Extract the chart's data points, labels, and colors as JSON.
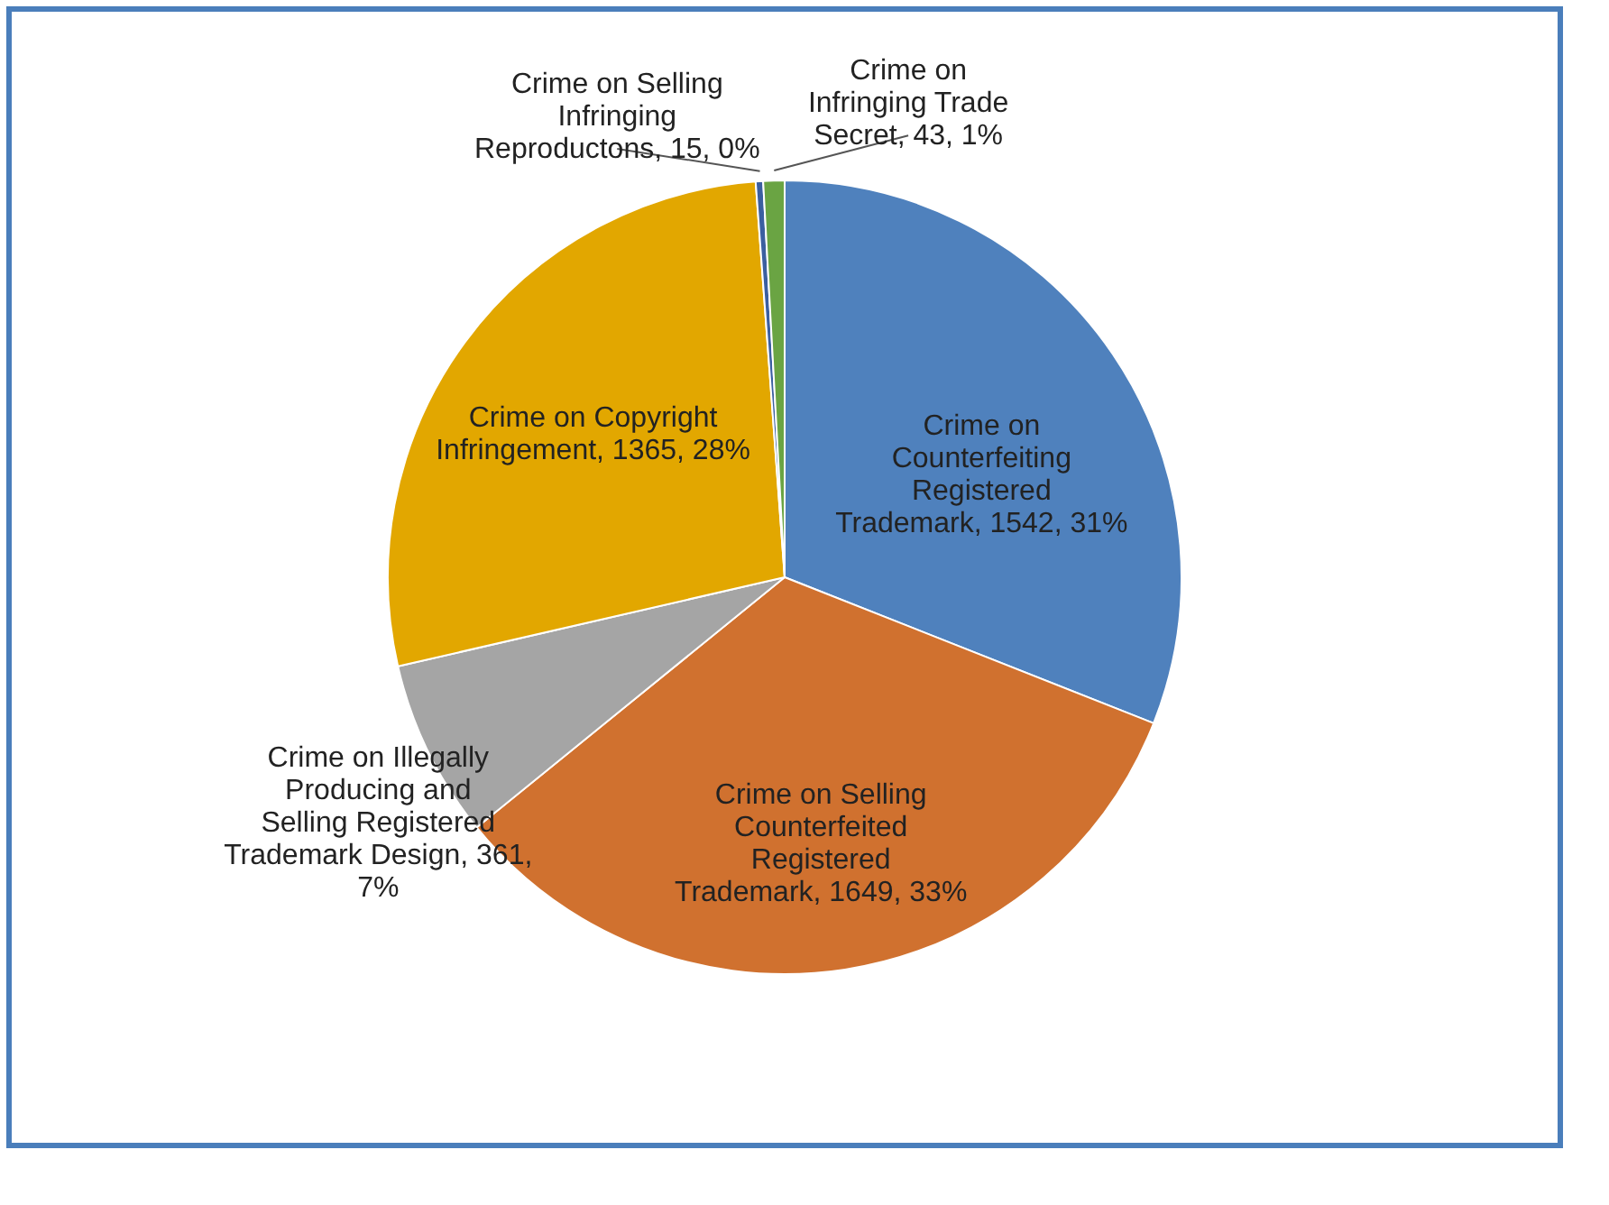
{
  "chart_data": {
    "type": "pie",
    "categories": [
      "Crime on Counterfeiting Registered Trademark",
      "Crime on Selling Counterfeited Registered Trademark",
      "Crime on Illegally Producing and Selling Registered Trademark Design",
      "Crime on Copyright Infringement",
      "Crime on Selling Infringing Reproductons",
      "Crime on Infringing Trade Secret"
    ],
    "values": [
      1542,
      1649,
      361,
      1365,
      15,
      43
    ],
    "colors": [
      "#4f81bd",
      "#d0712f",
      "#a5a5a5",
      "#e2a700",
      "#3b5fa0",
      "#6aa443"
    ],
    "value_labels": [
      "1542, 31%",
      "1649, 33%",
      "361, 7%",
      "1365, 28%",
      "15, 0%",
      "43, 1%"
    ],
    "legend": false
  }
}
